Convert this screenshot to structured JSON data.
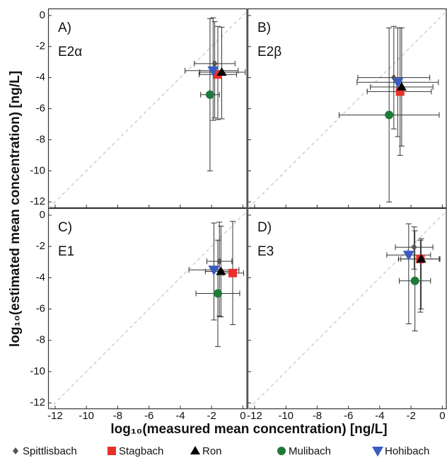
{
  "xlabel": "log₁₀(measured mean concentration) [ng/L]",
  "ylabel": "log₁₀(estimated mean concentration) [ng/L]",
  "legend": [
    {
      "name": "Spittlisbach",
      "color": "#555555",
      "marker": "diamond"
    },
    {
      "name": "Stagbach",
      "color": "#e8312a",
      "marker": "square"
    },
    {
      "name": "Ron",
      "color": "#000000",
      "marker": "triangle-up"
    },
    {
      "name": "Mulibach",
      "color": "#1e7a3a",
      "marker": "circle"
    },
    {
      "name": "Hohibach",
      "color": "#3a5bbf",
      "marker": "triangle-down"
    }
  ],
  "chart_data": [
    {
      "type": "scatter",
      "title": "A)",
      "subtitle": "E2α",
      "xlim": [
        -12.45,
        0.3
      ],
      "ylim": [
        -12.4,
        0.45
      ],
      "xticks": [
        -12,
        -10,
        -8,
        -6,
        -4,
        -2,
        0
      ],
      "yticks": [
        -12,
        -10,
        -8,
        -6,
        -4,
        -2,
        0
      ],
      "series": [
        {
          "x": -1.8,
          "y": -3.1,
          "xerr": [
            1.3,
            1.3
          ],
          "yerr": [
            3.5,
            2.7
          ]
        },
        {
          "x": -1.6,
          "y": -3.8,
          "xerr": [
            1.2,
            1.2
          ],
          "yerr": [
            2.9,
            3.1
          ]
        },
        {
          "x": -1.35,
          "y": -3.65,
          "xerr": [
            1.4,
            1.5
          ],
          "yerr": [
            3.0,
            2.9
          ]
        },
        {
          "x": -2.1,
          "y": -5.1,
          "xerr": [
            0.6,
            0.6
          ],
          "yerr": [
            4.9,
            4.9
          ]
        },
        {
          "x": -1.9,
          "y": -3.55,
          "xerr": [
            1.8,
            1.6
          ],
          "yerr": [
            3.2,
            3.4
          ]
        }
      ]
    },
    {
      "type": "scatter",
      "title": "B)",
      "subtitle": "E2β",
      "xlim": [
        -12.45,
        0.3
      ],
      "ylim": [
        -12.4,
        0.45
      ],
      "xticks": [
        -12,
        -10,
        -8,
        -6,
        -4,
        -2,
        0
      ],
      "yticks": [
        -12,
        -10,
        -8,
        -6,
        -4,
        -2,
        0
      ],
      "series": [
        {
          "x": -3.1,
          "y": -4.0,
          "xerr": [
            2.3,
            2.3
          ],
          "yerr": [
            3.3,
            3.3
          ]
        },
        {
          "x": -2.7,
          "y": -4.9,
          "xerr": [
            2.1,
            2.0
          ],
          "yerr": [
            4.1,
            4.1
          ]
        },
        {
          "x": -2.6,
          "y": -4.6,
          "xerr": [
            2.0,
            2.0
          ],
          "yerr": [
            3.8,
            3.8
          ]
        },
        {
          "x": -3.4,
          "y": -6.4,
          "xerr": [
            3.2,
            3.2
          ],
          "yerr": [
            5.6,
            5.6
          ]
        },
        {
          "x": -2.85,
          "y": -4.3,
          "xerr": [
            2.6,
            2.6
          ],
          "yerr": [
            3.5,
            3.5
          ]
        }
      ]
    },
    {
      "type": "scatter",
      "title": "C)",
      "subtitle": "E1",
      "xlim": [
        -12.45,
        0.3
      ],
      "ylim": [
        -12.4,
        0.45
      ],
      "xticks": [
        -12,
        -10,
        -8,
        -6,
        -4,
        -2,
        0
      ],
      "yticks": [
        -12,
        -10,
        -8,
        -6,
        -4,
        -2,
        0
      ],
      "series": [
        {
          "x": -1.5,
          "y": -2.95,
          "xerr": [
            0.8,
            0.8
          ],
          "yerr": [
            3.5,
            2.5
          ]
        },
        {
          "x": -0.65,
          "y": -3.7,
          "xerr": [
            0.6,
            0.7
          ],
          "yerr": [
            3.3,
            3.3
          ]
        },
        {
          "x": -1.4,
          "y": -3.6,
          "xerr": [
            1.0,
            1.0
          ],
          "yerr": [
            2.9,
            2.9
          ]
        },
        {
          "x": -1.6,
          "y": -5.0,
          "xerr": [
            1.4,
            1.4
          ],
          "yerr": [
            3.4,
            3.4
          ]
        },
        {
          "x": -1.85,
          "y": -3.5,
          "xerr": [
            1.6,
            1.6
          ],
          "yerr": [
            3.2,
            3.0
          ]
        }
      ]
    },
    {
      "type": "scatter",
      "title": "D)",
      "subtitle": "E3",
      "xlim": [
        -12.45,
        0.3
      ],
      "ylim": [
        -12.4,
        0.45
      ],
      "xticks": [
        -12,
        -10,
        -8,
        -6,
        -4,
        -2,
        0
      ],
      "yticks": [
        -12,
        -10,
        -8,
        -6,
        -4,
        -2,
        0
      ],
      "series": [
        {
          "x": -1.8,
          "y": -2.05,
          "xerr": [
            1.2,
            1.2
          ],
          "yerr": [
            1.4,
            1.3
          ]
        },
        {
          "x": -1.4,
          "y": -2.8,
          "xerr": [
            1.4,
            1.2
          ],
          "yerr": [
            3.4,
            1.2
          ]
        },
        {
          "x": -1.35,
          "y": -2.8,
          "xerr": [
            1.3,
            1.2
          ],
          "yerr": [
            3.2,
            1.3
          ]
        },
        {
          "x": -1.75,
          "y": -4.2,
          "xerr": [
            1.0,
            1.0
          ],
          "yerr": [
            3.2,
            3.2
          ]
        },
        {
          "x": -2.15,
          "y": -2.55,
          "xerr": [
            1.4,
            1.4
          ],
          "yerr": [
            4.4,
            2.0
          ]
        }
      ]
    }
  ]
}
